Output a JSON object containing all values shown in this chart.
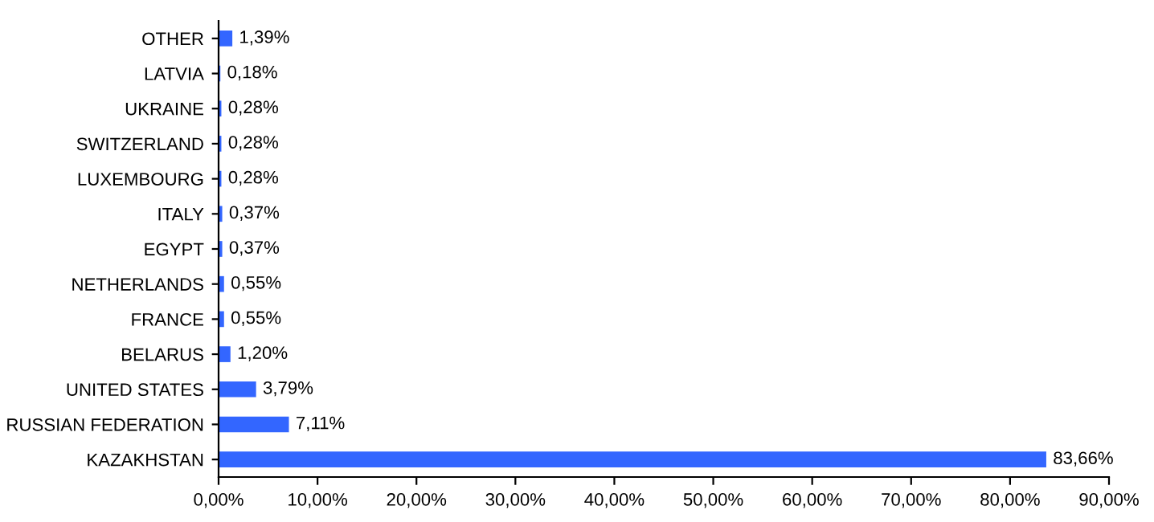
{
  "chart_data": {
    "type": "bar",
    "orientation": "horizontal",
    "categories": [
      "OTHER",
      "LATVIA",
      "UKRAINE",
      "SWITZERLAND",
      "LUXEMBOURG",
      "ITALY",
      "EGYPT",
      "NETHERLANDS",
      "FRANCE",
      "BELARUS",
      "UNITED STATES",
      "RUSSIAN FEDERATION",
      "KAZAKHSTAN"
    ],
    "values": [
      1.39,
      0.18,
      0.28,
      0.28,
      0.28,
      0.37,
      0.37,
      0.55,
      0.55,
      1.2,
      3.79,
      7.11,
      83.66
    ],
    "value_labels": [
      "1,39%",
      "0,18%",
      "0,28%",
      "0,28%",
      "0,28%",
      "0,37%",
      "0,37%",
      "0,55%",
      "0,55%",
      "1,20%",
      "3,79%",
      "7,11%",
      "83,66%"
    ],
    "color": "#3366ff",
    "xlim": [
      0,
      90
    ],
    "xticks": [
      {
        "value": 0,
        "label": "0,00%"
      },
      {
        "value": 10,
        "label": "10,00%"
      },
      {
        "value": 20,
        "label": "20,00%"
      },
      {
        "value": 30,
        "label": "30,00%"
      },
      {
        "value": 40,
        "label": "40,00%"
      },
      {
        "value": 50,
        "label": "50,00%"
      },
      {
        "value": 60,
        "label": "60,00%"
      },
      {
        "value": 70,
        "label": "70,00%"
      },
      {
        "value": 80,
        "label": "80,00%"
      },
      {
        "value": 90,
        "label": "90,00%"
      }
    ],
    "grid": false
  }
}
